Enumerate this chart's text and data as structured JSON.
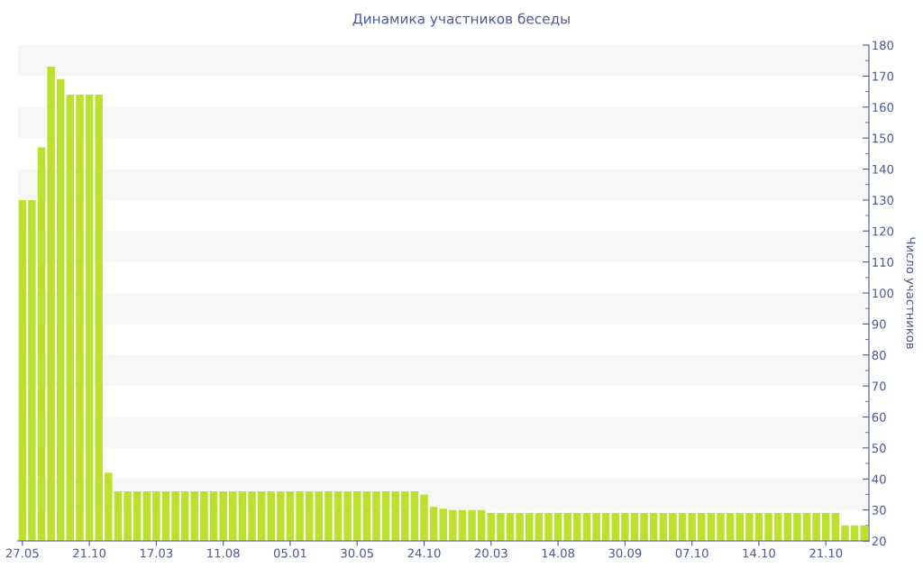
{
  "chart_data": {
    "type": "bar",
    "title": "Динамика участников беседы",
    "ylabel": "Число участников",
    "categories": [
      "27.05",
      null,
      null,
      null,
      null,
      null,
      null,
      "21.10",
      null,
      null,
      null,
      null,
      null,
      null,
      "17.03",
      null,
      null,
      null,
      null,
      null,
      null,
      "11.08",
      null,
      null,
      null,
      null,
      null,
      null,
      "05.01",
      null,
      null,
      null,
      null,
      null,
      null,
      "30.05",
      null,
      null,
      null,
      null,
      null,
      null,
      "24.10",
      null,
      null,
      null,
      null,
      null,
      null,
      "20.03",
      null,
      null,
      null,
      null,
      null,
      null,
      "14.08",
      null,
      null,
      null,
      null,
      null,
      null,
      "30.09",
      null,
      null,
      null,
      null,
      null,
      null,
      "07.10",
      null,
      null,
      null,
      null,
      null,
      null,
      "14.10",
      null,
      null,
      null,
      null,
      null,
      null,
      "21.10",
      null,
      null,
      null,
      null
    ],
    "values": [
      130,
      130,
      147,
      173,
      169,
      164,
      164,
      164,
      164,
      42,
      36,
      36,
      36,
      36,
      36,
      36,
      36,
      36,
      36,
      36,
      36,
      36,
      36,
      36,
      36,
      36,
      36,
      36,
      36,
      36,
      36,
      36,
      36,
      36,
      36,
      36,
      36,
      36,
      36,
      36,
      36,
      36,
      35,
      31,
      30.4,
      30,
      30,
      30,
      30,
      29,
      29,
      29,
      29,
      29,
      29,
      29,
      29,
      29,
      29,
      29,
      29,
      29,
      29,
      29,
      29,
      29,
      29,
      29,
      29,
      29,
      29,
      29,
      29,
      29,
      29,
      29,
      29,
      29,
      29,
      29,
      29,
      29,
      29,
      29,
      29,
      29,
      25,
      25,
      25
    ],
    "color": "#bce02e",
    "ylim": [
      20,
      180
    ],
    "yticks": [
      20,
      30,
      40,
      50,
      60,
      70,
      80,
      90,
      100,
      110,
      120,
      130,
      140,
      150,
      160,
      170,
      180
    ],
    "bands": [
      {
        "axis": "y",
        "from": 30,
        "to": 40,
        "color": "#f7f7f7"
      },
      {
        "axis": "y",
        "from": 50,
        "to": 60,
        "color": "#f7f7f7"
      },
      {
        "axis": "y",
        "from": 70,
        "to": 80,
        "color": "#f7f7f7"
      },
      {
        "axis": "y",
        "from": 90,
        "to": 100,
        "color": "#f7f7f7"
      },
      {
        "axis": "y",
        "from": 110,
        "to": 120,
        "color": "#f7f7f7"
      },
      {
        "axis": "y",
        "from": 130,
        "to": 140,
        "color": "#f7f7f7"
      },
      {
        "axis": "y",
        "from": 150,
        "to": 160,
        "color": "#f7f7f7"
      },
      {
        "axis": "y",
        "from": 170,
        "to": 180,
        "color": "#f7f7f7"
      }
    ]
  }
}
